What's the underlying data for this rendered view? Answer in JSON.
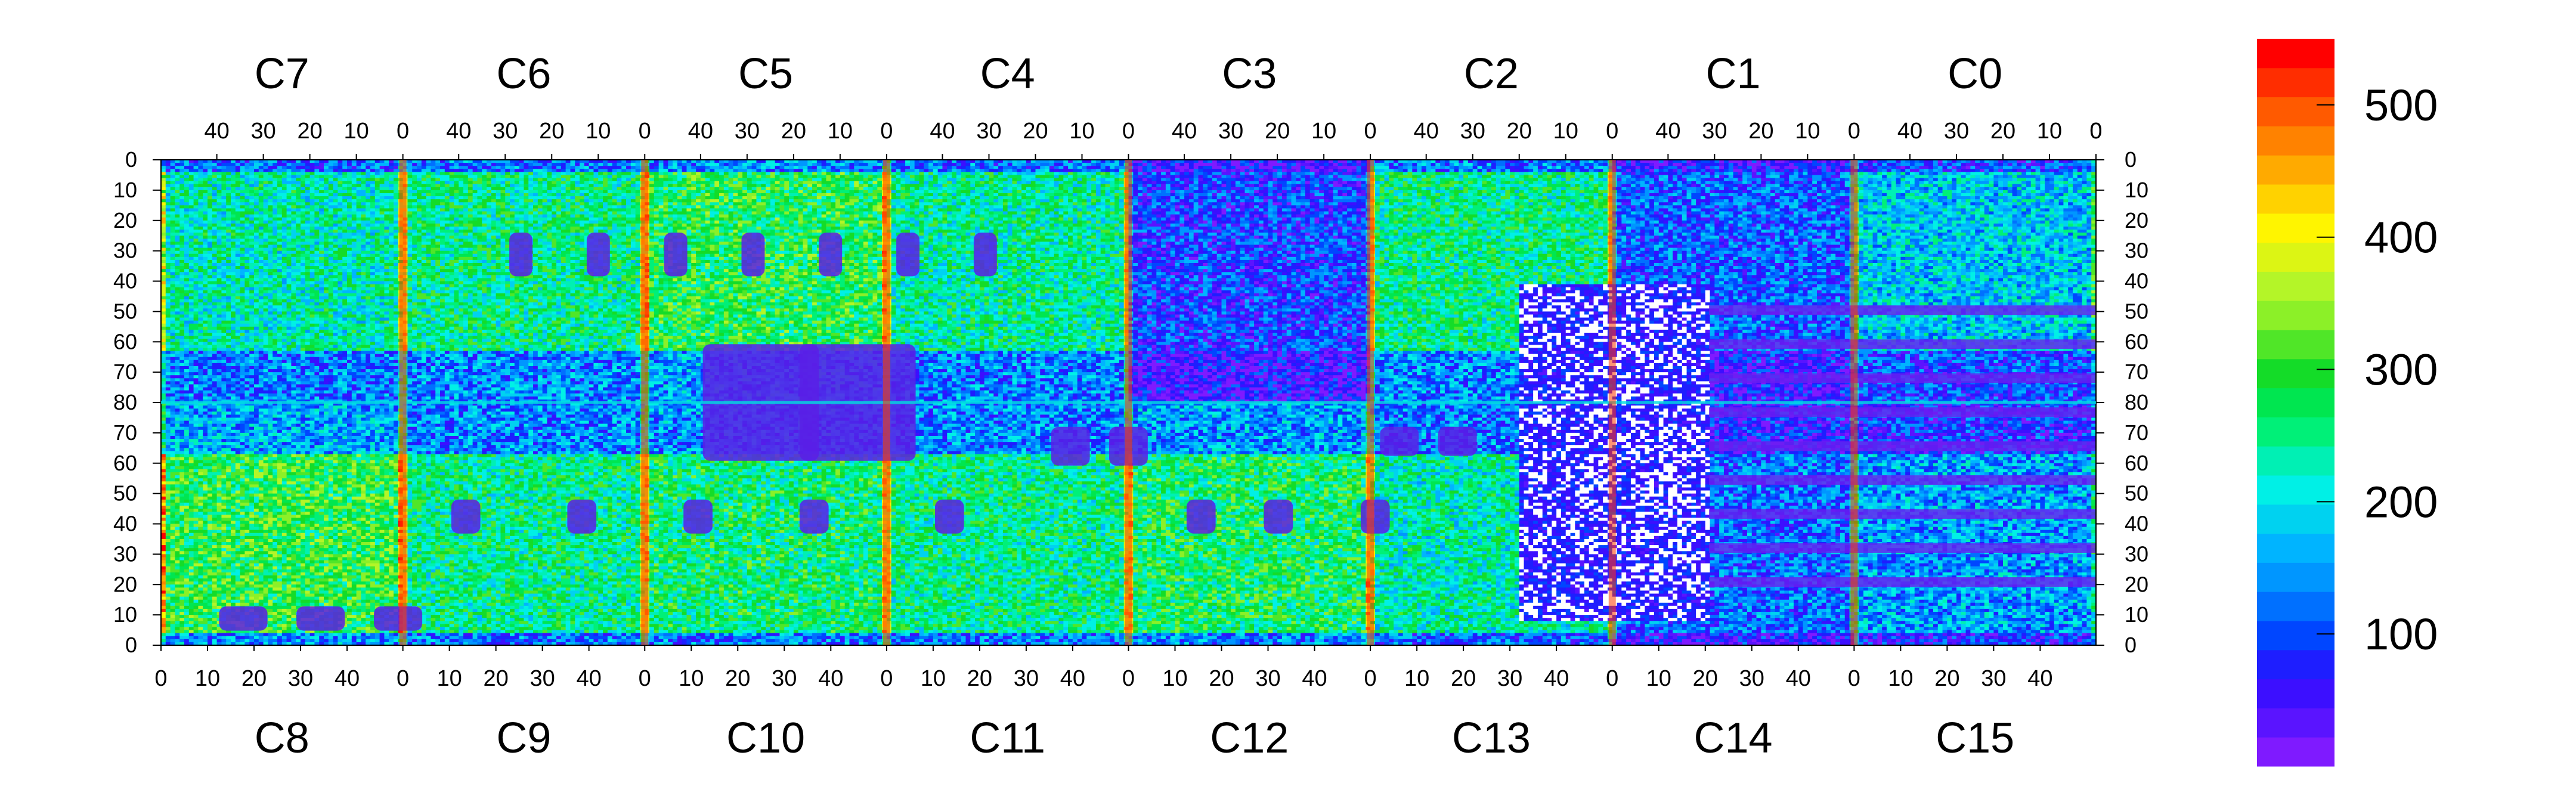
{
  "chart_data": {
    "type": "heatmap",
    "title": "",
    "xlabel": "",
    "ylabel": "",
    "chips_top": [
      "C7",
      "C6",
      "C5",
      "C4",
      "C3",
      "C2",
      "C1",
      "C0"
    ],
    "chips_bottom": [
      "C8",
      "C9",
      "C10",
      "C11",
      "C12",
      "C13",
      "C14",
      "C15"
    ],
    "x_range_per_chip": [
      0,
      52
    ],
    "y_range_per_half": [
      0,
      80
    ],
    "top_x_ticks": [
      "40",
      "30",
      "20",
      "10",
      "0"
    ],
    "bottom_x_ticks": [
      "0",
      "10",
      "20",
      "30",
      "40"
    ],
    "top_y_ticks": [
      "0",
      "10",
      "20",
      "30",
      "40",
      "50",
      "60",
      "70",
      "80"
    ],
    "bottom_y_ticks": [
      "70",
      "60",
      "50",
      "40",
      "30",
      "20",
      "10",
      "0"
    ],
    "z_range": [
      0,
      550
    ],
    "colorbar_ticks": [
      "500",
      "400",
      "300",
      "200",
      "100"
    ],
    "colorbar_tick_values": [
      500,
      400,
      300,
      200,
      100
    ],
    "colormap": [
      "#7f1aff",
      "#5a14ff",
      "#3c0fff",
      "#1e1eff",
      "#0046ff",
      "#0070ff",
      "#0096ff",
      "#00b4ff",
      "#00d2f0",
      "#00f0e6",
      "#00f0b4",
      "#00f078",
      "#00e650",
      "#14dc28",
      "#50e628",
      "#8cf028",
      "#b4f528",
      "#dcf514",
      "#fff500",
      "#ffd200",
      "#ffaa00",
      "#ff8200",
      "#ff5a00",
      "#ff2d00",
      "#ff0000"
    ],
    "regions": [
      {
        "chip": "C7",
        "description": "mostly 150-300, red stripe at chip edge"
      },
      {
        "chip": "C6",
        "description": "mostly 200-300 with dark pads"
      },
      {
        "chip": "C5",
        "description": "mostly 200-350 with dark pads"
      },
      {
        "chip": "C4",
        "description": "mostly 200-300"
      },
      {
        "chip": "C3",
        "description": "mostly 50-150"
      },
      {
        "chip": "C2",
        "description": "mostly 200-300"
      },
      {
        "chip": "C1",
        "description": "mostly 50-200, saturated white blob (>550)"
      },
      {
        "chip": "C0",
        "description": "mostly 150-250 with stripes"
      }
    ]
  }
}
